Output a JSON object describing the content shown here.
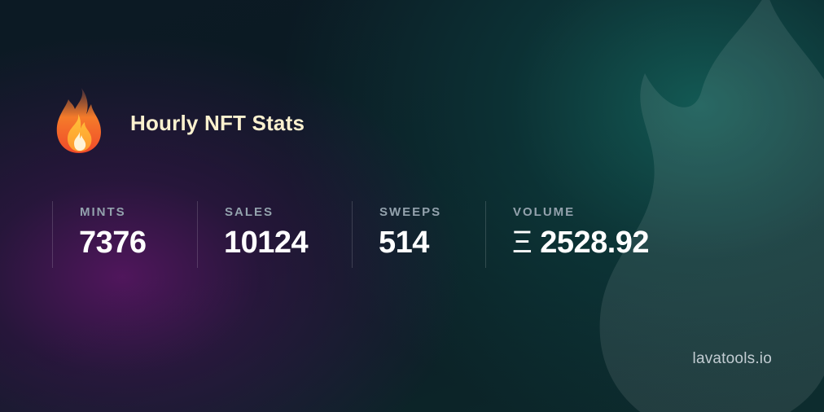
{
  "header": {
    "icon": "fire-icon",
    "title": "Hourly NFT Stats"
  },
  "stats": [
    {
      "label": "MINTS",
      "value": "7376"
    },
    {
      "label": "SALES",
      "value": "10124"
    },
    {
      "label": "SWEEPS",
      "value": "514"
    },
    {
      "label": "VOLUME",
      "currency_symbol": "Ξ",
      "value": "2528.92"
    }
  ],
  "footer": {
    "brand": "lavatools.io"
  },
  "colors": {
    "title": "#fbf1cf",
    "label": "#93a2ad",
    "value": "#ffffff",
    "accent_purple": "#5c1666",
    "accent_teal": "#166e64"
  }
}
